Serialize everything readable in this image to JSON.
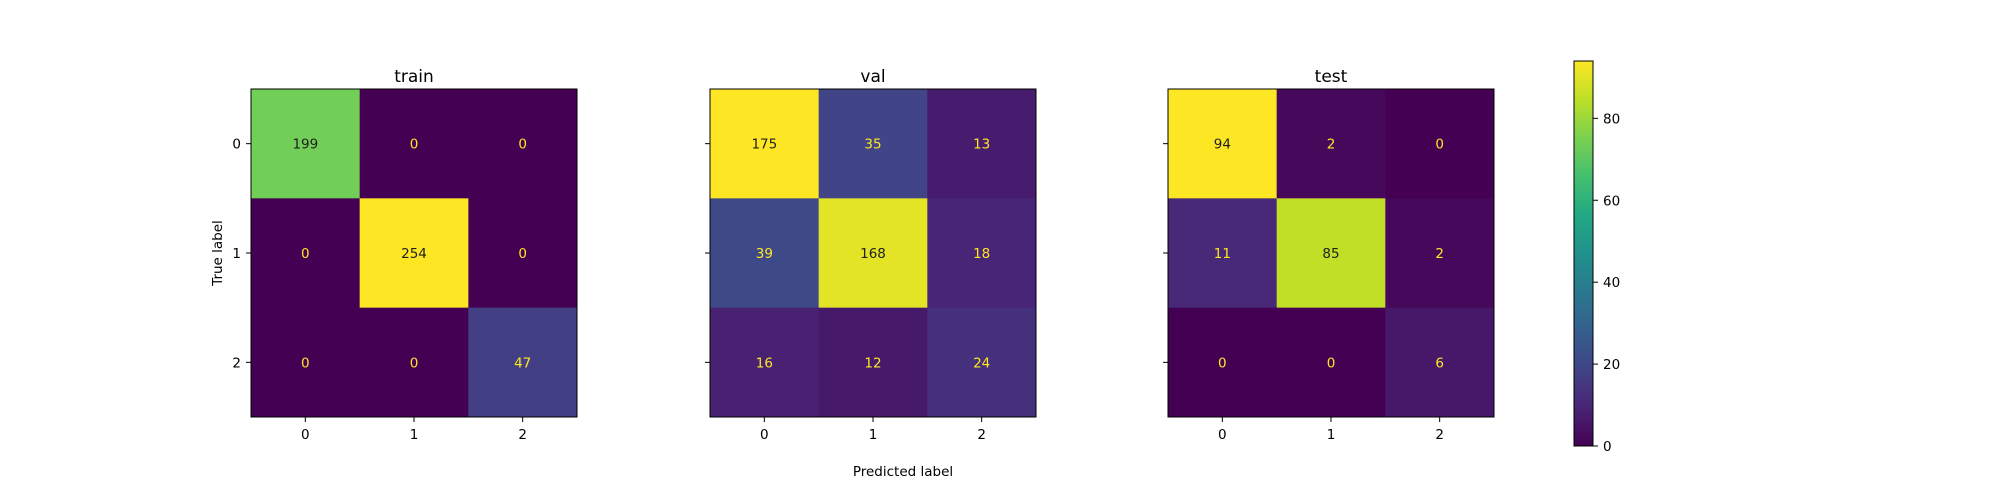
{
  "chart_data": {
    "type": "heatmap",
    "colormap": "viridis",
    "colorbar": {
      "min": 0,
      "max": 94,
      "ticks": [
        "0",
        "20",
        "40",
        "60",
        "80"
      ],
      "tick_values": [
        0,
        20,
        40,
        60,
        80
      ]
    },
    "xlabel": "Predicted label",
    "ylabel": "True label",
    "class_labels": [
      "0",
      "1",
      "2"
    ],
    "panels": [
      {
        "title": "train",
        "matrix": [
          [
            199,
            0,
            0
          ],
          [
            0,
            254,
            0
          ],
          [
            0,
            0,
            47
          ]
        ],
        "color_scale_max": 254
      },
      {
        "title": "val",
        "matrix": [
          [
            175,
            35,
            13
          ],
          [
            39,
            168,
            18
          ],
          [
            16,
            12,
            24
          ]
        ],
        "color_scale_max": 175
      },
      {
        "title": "test",
        "matrix": [
          [
            94,
            2,
            0
          ],
          [
            11,
            85,
            2
          ],
          [
            0,
            0,
            6
          ]
        ],
        "color_scale_max": 94
      }
    ],
    "text_colors": {
      "on_dark": "#fde725",
      "on_light": "#1f1f1f"
    }
  }
}
